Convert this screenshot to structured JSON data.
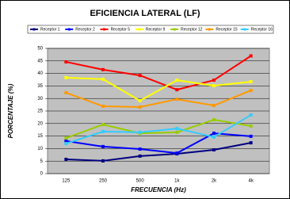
{
  "chart_data": {
    "type": "line",
    "title": "EFICIENCIA LATERAL (LF)",
    "x_label": "FRECUENCIA (Hz)",
    "y_label": "PORCENTAJE (%)",
    "categories": [
      "125",
      "250",
      "500",
      "1k",
      "2k",
      "4k"
    ],
    "series": [
      {
        "name": "Receptor 1",
        "color": "#000080",
        "values": [
          5.7,
          5.1,
          7.0,
          7.9,
          9.5,
          12.3
        ]
      },
      {
        "name": "Receptor 2",
        "color": "#0000ff",
        "values": [
          13,
          10.8,
          9.8,
          8.2,
          16.1,
          14.9
        ]
      },
      {
        "name": "Receptor 5",
        "color": "#ff0000",
        "values": [
          44.6,
          41.5,
          39.2,
          33.5,
          37.3,
          47
        ]
      },
      {
        "name": "Receptor 9",
        "color": "#ffff00",
        "values": [
          38.3,
          37.7,
          29.1,
          37.3,
          35.1,
          36.7
        ]
      },
      {
        "name": "Receptor 12",
        "color": "#99cc00",
        "values": [
          14.2,
          19.6,
          16.1,
          16.5,
          21.5,
          19
        ]
      },
      {
        "name": "Receptor 15",
        "color": "#ff9900",
        "values": [
          32.3,
          26.9,
          26.6,
          29.7,
          27.2,
          33.2
        ]
      },
      {
        "name": "Receptor 16",
        "color": "#33ccff",
        "values": [
          12,
          16.8,
          16.5,
          18,
          14.6,
          23.4
        ]
      }
    ],
    "ylim": [
      0,
      50
    ],
    "yticks": [
      0,
      5,
      10,
      15,
      20,
      25,
      30,
      35,
      40,
      45,
      50
    ],
    "grid": true,
    "legend": "top"
  }
}
